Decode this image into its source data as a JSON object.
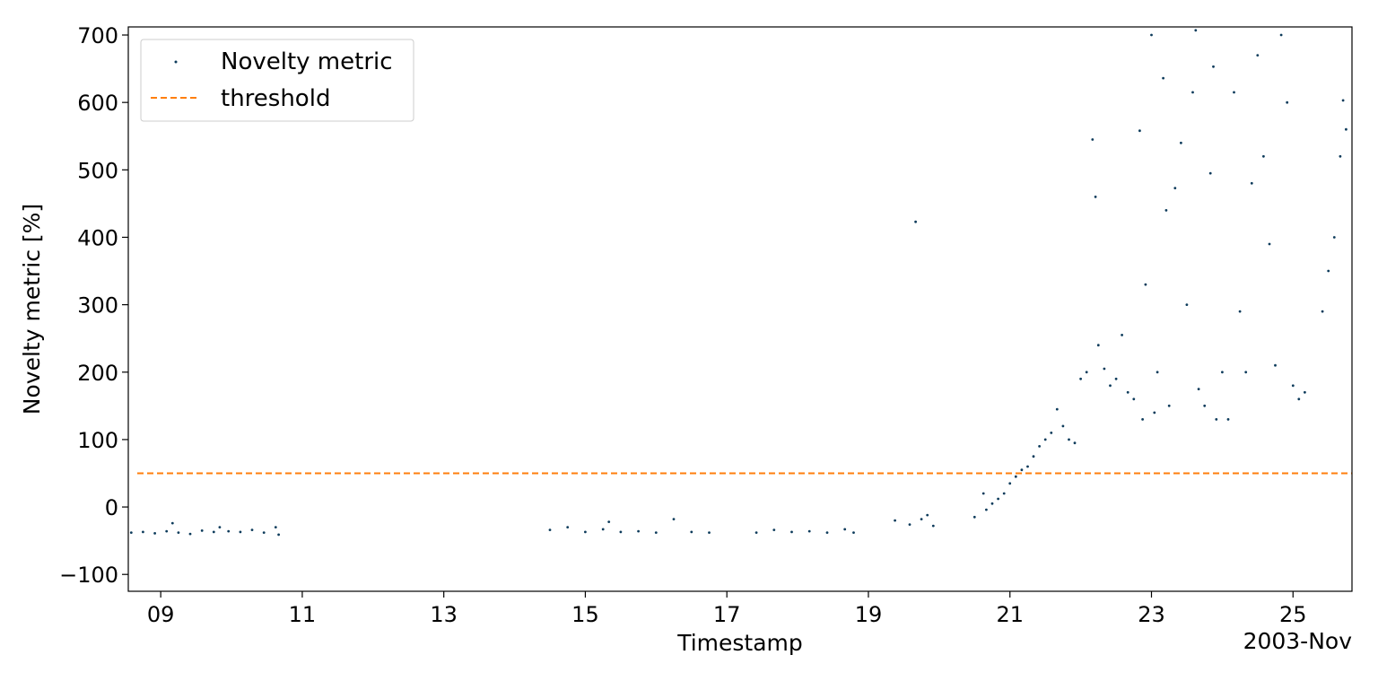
{
  "chart_data": {
    "type": "scatter",
    "xlabel": "Timestamp",
    "ylabel": "Novelty metric [%]",
    "x_offset_label": "2003-Nov",
    "xlim": [
      "2003-11-08 13:00",
      "2003-11-25 20:00"
    ],
    "ylim": [
      -125,
      712
    ],
    "x_ticks": [
      {
        "date": "2003-11-09",
        "label": "09"
      },
      {
        "date": "2003-11-11",
        "label": "11"
      },
      {
        "date": "2003-11-13",
        "label": "13"
      },
      {
        "date": "2003-11-15",
        "label": "15"
      },
      {
        "date": "2003-11-17",
        "label": "17"
      },
      {
        "date": "2003-11-19",
        "label": "19"
      },
      {
        "date": "2003-11-21",
        "label": "21"
      },
      {
        "date": "2003-11-23",
        "label": "23"
      },
      {
        "date": "2003-11-25",
        "label": "25"
      }
    ],
    "y_ticks": [
      -100,
      0,
      100,
      200,
      300,
      400,
      500,
      600,
      700
    ],
    "y_tick_labels": [
      "−100",
      "0",
      "100",
      "200",
      "300",
      "400",
      "500",
      "600",
      "700"
    ],
    "grid": false,
    "legend": "top-left",
    "series": [
      {
        "name": "Novelty metric",
        "marker": "point",
        "color": "#0d3b5b",
        "points": [
          [
            "2003-11-08 14:00",
            -38
          ],
          [
            "2003-11-08 18:00",
            -37
          ],
          [
            "2003-11-08 22:00",
            -39
          ],
          [
            "2003-11-09 02:00",
            -36
          ],
          [
            "2003-11-09 04:00",
            -24
          ],
          [
            "2003-11-09 06:00",
            -38
          ],
          [
            "2003-11-09 10:00",
            -40
          ],
          [
            "2003-11-09 14:00",
            -35
          ],
          [
            "2003-11-09 18:00",
            -37
          ],
          [
            "2003-11-09 20:00",
            -30
          ],
          [
            "2003-11-09 23:00",
            -36
          ],
          [
            "2003-11-10 03:00",
            -37
          ],
          [
            "2003-11-10 07:00",
            -34
          ],
          [
            "2003-11-10 11:00",
            -38
          ],
          [
            "2003-11-10 15:00",
            -30
          ],
          [
            "2003-11-10 16:00",
            -41
          ],
          [
            "2003-11-14 12:00",
            -34
          ],
          [
            "2003-11-14 18:00",
            -30
          ],
          [
            "2003-11-15 00:00",
            -37
          ],
          [
            "2003-11-15 06:00",
            -33
          ],
          [
            "2003-11-15 08:00",
            -22
          ],
          [
            "2003-11-15 12:00",
            -37
          ],
          [
            "2003-11-15 18:00",
            -36
          ],
          [
            "2003-11-16 00:00",
            -38
          ],
          [
            "2003-11-16 06:00",
            -18
          ],
          [
            "2003-11-16 12:00",
            -37
          ],
          [
            "2003-11-16 18:00",
            -38
          ],
          [
            "2003-11-17 10:00",
            -38
          ],
          [
            "2003-11-17 16:00",
            -34
          ],
          [
            "2003-11-17 22:00",
            -37
          ],
          [
            "2003-11-18 04:00",
            -36
          ],
          [
            "2003-11-18 10:00",
            -38
          ],
          [
            "2003-11-18 16:00",
            -33
          ],
          [
            "2003-11-18 19:00",
            -38
          ],
          [
            "2003-11-19 09:00",
            -20
          ],
          [
            "2003-11-19 14:00",
            -26
          ],
          [
            "2003-11-19 16:00",
            423
          ],
          [
            "2003-11-19 18:00",
            -18
          ],
          [
            "2003-11-19 20:00",
            -12
          ],
          [
            "2003-11-19 22:00",
            -28
          ],
          [
            "2003-11-20 12:00",
            -15
          ],
          [
            "2003-11-20 15:00",
            20
          ],
          [
            "2003-11-20 16:00",
            -4
          ],
          [
            "2003-11-20 18:00",
            5
          ],
          [
            "2003-11-20 20:00",
            12
          ],
          [
            "2003-11-20 22:00",
            20
          ],
          [
            "2003-11-21 00:00",
            35
          ],
          [
            "2003-11-21 02:00",
            45
          ],
          [
            "2003-11-21 04:00",
            55
          ],
          [
            "2003-11-21 06:00",
            60
          ],
          [
            "2003-11-21 08:00",
            75
          ],
          [
            "2003-11-21 10:00",
            90
          ],
          [
            "2003-11-21 12:00",
            100
          ],
          [
            "2003-11-21 14:00",
            110
          ],
          [
            "2003-11-21 16:00",
            145
          ],
          [
            "2003-11-21 18:00",
            120
          ],
          [
            "2003-11-21 20:00",
            100
          ],
          [
            "2003-11-21 22:00",
            95
          ],
          [
            "2003-11-22 00:00",
            190
          ],
          [
            "2003-11-22 02:00",
            200
          ],
          [
            "2003-11-22 04:00",
            545
          ],
          [
            "2003-11-22 05:00",
            460
          ],
          [
            "2003-11-22 06:00",
            240
          ],
          [
            "2003-11-22 08:00",
            205
          ],
          [
            "2003-11-22 10:00",
            180
          ],
          [
            "2003-11-22 12:00",
            190
          ],
          [
            "2003-11-22 14:00",
            255
          ],
          [
            "2003-11-22 16:00",
            170
          ],
          [
            "2003-11-22 18:00",
            160
          ],
          [
            "2003-11-22 20:00",
            558
          ],
          [
            "2003-11-22 21:00",
            130
          ],
          [
            "2003-11-22 22:00",
            330
          ],
          [
            "2003-11-23 00:00",
            700
          ],
          [
            "2003-11-23 01:00",
            140
          ],
          [
            "2003-11-23 02:00",
            200
          ],
          [
            "2003-11-23 04:00",
            636
          ],
          [
            "2003-11-23 05:00",
            440
          ],
          [
            "2003-11-23 06:00",
            150
          ],
          [
            "2003-11-23 08:00",
            473
          ],
          [
            "2003-11-23 10:00",
            540
          ],
          [
            "2003-11-23 12:00",
            300
          ],
          [
            "2003-11-23 14:00",
            615
          ],
          [
            "2003-11-23 15:00",
            707
          ],
          [
            "2003-11-23 16:00",
            175
          ],
          [
            "2003-11-23 18:00",
            150
          ],
          [
            "2003-11-23 20:00",
            495
          ],
          [
            "2003-11-23 21:00",
            653
          ],
          [
            "2003-11-23 22:00",
            130
          ],
          [
            "2003-11-24 00:00",
            200
          ],
          [
            "2003-11-24 02:00",
            130
          ],
          [
            "2003-11-24 04:00",
            615
          ],
          [
            "2003-11-24 06:00",
            290
          ],
          [
            "2003-11-24 08:00",
            200
          ],
          [
            "2003-11-24 10:00",
            480
          ],
          [
            "2003-11-24 12:00",
            670
          ],
          [
            "2003-11-24 14:00",
            520
          ],
          [
            "2003-11-24 16:00",
            390
          ],
          [
            "2003-11-24 18:00",
            210
          ],
          [
            "2003-11-24 20:00",
            700
          ],
          [
            "2003-11-24 22:00",
            600
          ],
          [
            "2003-11-25 00:00",
            180
          ],
          [
            "2003-11-25 02:00",
            160
          ],
          [
            "2003-11-25 04:00",
            170
          ],
          [
            "2003-11-25 10:00",
            290
          ],
          [
            "2003-11-25 12:00",
            350
          ],
          [
            "2003-11-25 14:00",
            400
          ],
          [
            "2003-11-25 16:00",
            520
          ],
          [
            "2003-11-25 17:00",
            603
          ],
          [
            "2003-11-25 18:00",
            560
          ]
        ]
      },
      {
        "name": "threshold",
        "style": "dashed",
        "color": "#ff7f0e",
        "points": [
          [
            "2003-11-08 13:00",
            50
          ],
          [
            "2003-11-25 20:00",
            50
          ]
        ]
      }
    ]
  }
}
